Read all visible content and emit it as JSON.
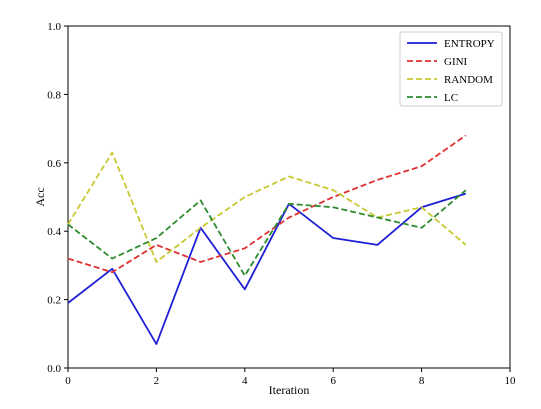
{
  "chart_data": {
    "type": "line",
    "title": "",
    "xlabel": "Iteration",
    "ylabel": "Acc",
    "xlim": [
      0,
      10
    ],
    "ylim": [
      0.0,
      1.0
    ],
    "xticks": [
      "0",
      "2",
      "4",
      "6",
      "8",
      "10"
    ],
    "yticks": [
      "0.0",
      "0.2",
      "0.4",
      "0.6",
      "0.8",
      "1.0"
    ],
    "grid": false,
    "legend_position": "top-right",
    "x": [
      0,
      1,
      2,
      3,
      4,
      5,
      6,
      7,
      8,
      9
    ],
    "series": [
      {
        "name": "ENTROPY",
        "color": "#1f1fd6",
        "style": "solid",
        "values": [
          0.19,
          0.29,
          0.07,
          0.41,
          0.23,
          0.48,
          0.38,
          0.36,
          0.47,
          0.51
        ]
      },
      {
        "name": "GINI",
        "color": "#e03030",
        "style": "dashed",
        "values": [
          0.32,
          0.28,
          0.36,
          0.31,
          0.35,
          0.44,
          0.5,
          0.55,
          0.59,
          0.68
        ]
      },
      {
        "name": "RANDOM",
        "color": "#c8c832",
        "style": "dashed",
        "values": [
          0.42,
          0.63,
          0.31,
          0.41,
          0.5,
          0.56,
          0.52,
          0.44,
          0.47,
          0.36
        ]
      },
      {
        "name": "LC",
        "color": "#2e8b2e",
        "style": "dashed",
        "values": [
          0.42,
          0.32,
          0.38,
          0.49,
          0.27,
          0.48,
          0.47,
          0.44,
          0.41,
          0.52
        ]
      }
    ]
  }
}
